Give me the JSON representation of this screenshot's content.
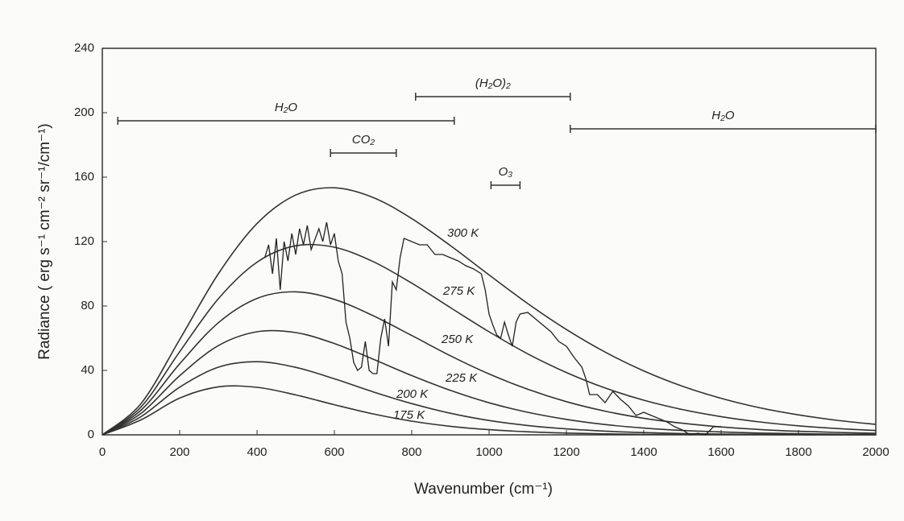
{
  "chart_data": {
    "type": "line",
    "x_label": "Wavenumber (cm⁻¹)",
    "y_label": "Radiance ( erg s⁻¹ cm⁻² sr⁻¹/cm⁻¹)",
    "xlim": [
      0,
      2000
    ],
    "ylim": [
      0,
      240
    ],
    "xticks": [
      0,
      200,
      400,
      600,
      800,
      1000,
      1200,
      1400,
      1600,
      1800,
      2000
    ],
    "yticks": [
      0,
      40,
      80,
      120,
      160,
      200,
      240
    ],
    "grid": false,
    "x": [
      0,
      100,
      200,
      300,
      400,
      500,
      600,
      700,
      800,
      900,
      1000,
      1100,
      1200,
      1300,
      1400,
      1500,
      1600,
      1700,
      1800,
      1900,
      2000
    ],
    "series": [
      {
        "name": "300 K",
        "color": "#333333",
        "values": [
          0,
          19.4,
          59.2,
          100.0,
          131.2,
          148.9,
          153.4,
          147.4,
          134.3,
          117.5,
          99.3,
          81.5,
          65.4,
          51.4,
          39.7,
          30.2,
          22.7,
          16.8,
          12.4,
          9.0,
          6.5
        ]
      },
      {
        "name": "275 K",
        "color": "#333333",
        "values": [
          0,
          17.3,
          51.6,
          84.5,
          107.2,
          117.4,
          116.5,
          107.6,
          94.2,
          79.0,
          64.0,
          50.3,
          38.7,
          29.1,
          21.5,
          15.7,
          11.3,
          8.0,
          5.6,
          3.9,
          2.7
        ]
      },
      {
        "name": "250 K",
        "color": "#333333",
        "values": [
          0,
          15.3,
          44.1,
          69.6,
          84.7,
          88.8,
          84.1,
          74.0,
          61.7,
          49.1,
          37.8,
          28.3,
          20.6,
          14.7,
          10.3,
          7.2,
          4.9,
          3.3,
          2.2,
          1.5,
          1.0
        ]
      },
      {
        "name": "225 K",
        "color": "#333333",
        "values": [
          0,
          13.3,
          36.7,
          55.4,
          64.0,
          63.5,
          56.7,
          47.0,
          36.8,
          27.6,
          19.9,
          14.0,
          9.6,
          6.4,
          4.2,
          2.7,
          1.8,
          1.1,
          0.7,
          0.4,
          0.3
        ]
      },
      {
        "name": "200 K",
        "color": "#333333",
        "values": [
          0,
          11.3,
          29.6,
          42.0,
          45.4,
          41.9,
          34.8,
          26.7,
          19.4,
          13.4,
          8.9,
          5.8,
          3.7,
          2.3,
          1.4,
          0.8,
          0.5,
          0.3,
          0.2,
          0.1,
          0.1
        ]
      },
      {
        "name": "175 K",
        "color": "#333333",
        "values": [
          0,
          9.3,
          22.8,
          29.8,
          29.5,
          24.8,
          18.7,
          13.0,
          8.5,
          5.3,
          3.2,
          1.9,
          1.1,
          0.6,
          0.3,
          0.2,
          0.1,
          0.1,
          0,
          0,
          0
        ]
      }
    ],
    "spectrum": {
      "color": "#222222",
      "x": [
        420,
        430,
        440,
        450,
        460,
        470,
        480,
        490,
        500,
        510,
        520,
        530,
        540,
        560,
        570,
        580,
        590,
        600,
        610,
        620,
        630,
        640,
        650,
        660,
        670,
        680,
        690,
        700,
        710,
        720,
        730,
        740,
        750,
        760,
        770,
        780,
        800,
        820,
        840,
        860,
        880,
        900,
        920,
        940,
        960,
        980,
        990,
        1000,
        1010,
        1020,
        1030,
        1040,
        1050,
        1060,
        1070,
        1080,
        1100,
        1120,
        1140,
        1160,
        1180,
        1200,
        1220,
        1240,
        1250,
        1260,
        1280,
        1300,
        1320,
        1340,
        1360,
        1380,
        1400,
        1420,
        1440,
        1460,
        1480,
        1500,
        1520,
        1540,
        1560,
        1580,
        1600
      ],
      "values": [
        110,
        118,
        100,
        122,
        90,
        120,
        108,
        125,
        112,
        128,
        118,
        130,
        115,
        128,
        120,
        132,
        118,
        125,
        108,
        100,
        70,
        60,
        45,
        40,
        42,
        58,
        40,
        38,
        38,
        60,
        72,
        55,
        95,
        90,
        110,
        122,
        120,
        118,
        118,
        112,
        112,
        110,
        108,
        105,
        103,
        100,
        90,
        75,
        68,
        62,
        60,
        70,
        62,
        55,
        70,
        75,
        76,
        72,
        68,
        64,
        58,
        55,
        48,
        42,
        35,
        25,
        25,
        20,
        27,
        22,
        18,
        12,
        14,
        12,
        10,
        8,
        5,
        3,
        0,
        1,
        0,
        5,
        5
      ]
    },
    "annotations": [
      {
        "text": "H₂O",
        "x": [
          40,
          910
        ],
        "y": 195
      },
      {
        "text": "(H₂O)₂",
        "x": [
          810,
          1210
        ],
        "y": 210
      },
      {
        "text": "H₂O",
        "x": [
          1210,
          2000
        ],
        "y": 190
      },
      {
        "text": "CO₂",
        "x": [
          590,
          760
        ],
        "y": 175
      },
      {
        "text": "O₃",
        "x": [
          1005,
          1080
        ],
        "y": 155
      }
    ]
  }
}
